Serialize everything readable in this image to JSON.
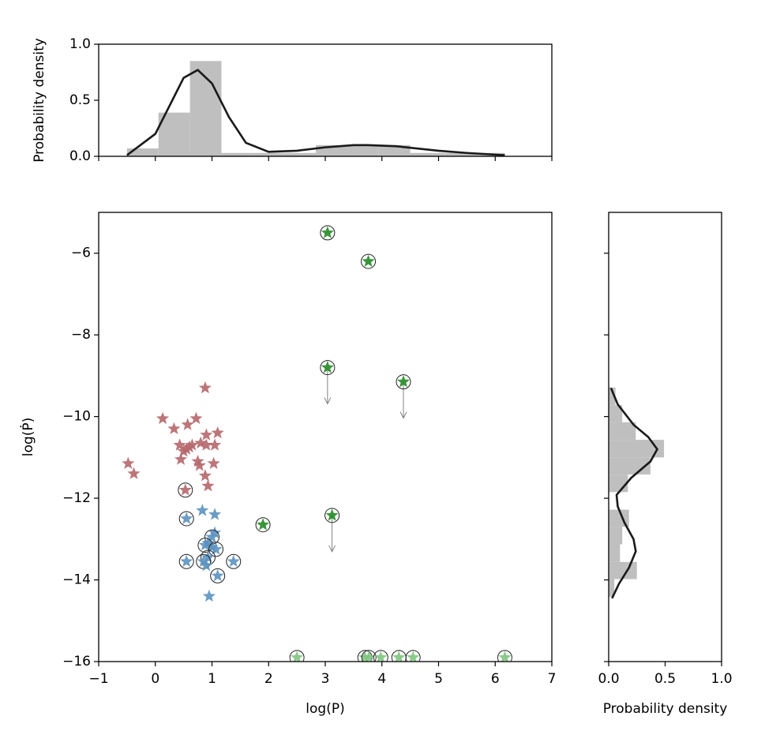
{
  "chart_data": [
    {
      "type": "histogram",
      "orientation": "vertical",
      "ylabel": "Probability density",
      "bins": [
        -0.5,
        0.056,
        0.611,
        1.167,
        1.722,
        2.278,
        2.833,
        3.389,
        3.944,
        4.5,
        5.056,
        5.611,
        6.167
      ],
      "values": [
        0.07,
        0.39,
        0.85,
        0.03,
        0.03,
        0.03,
        0.1,
        0.1,
        0.1,
        0.03,
        0.03,
        0.03
      ],
      "color": "#bfbfbf",
      "kde": {
        "color": "#1a1a1a",
        "x": [
          -0.5,
          0,
          0.3,
          0.5,
          0.75,
          1.0,
          1.3,
          1.6,
          2.0,
          2.5,
          3.0,
          3.5,
          3.75,
          4.25,
          5.0,
          5.5,
          6.17
        ],
        "values": [
          0.01,
          0.2,
          0.5,
          0.7,
          0.77,
          0.65,
          0.35,
          0.12,
          0.04,
          0.05,
          0.08,
          0.1,
          0.1,
          0.09,
          0.05,
          0.03,
          0.01
        ]
      },
      "xlim": [
        -1,
        7
      ],
      "xticks": [
        {
          "value": -1,
          "label": "−1"
        },
        0,
        1,
        2,
        3,
        4,
        5,
        6,
        7
      ],
      "show_xticklabels": false,
      "ylim": [
        0,
        1
      ],
      "yticks": [
        {
          "value": 0,
          "label": "0.0"
        },
        0.5,
        {
          "value": 1,
          "label": "1.0"
        }
      ]
    },
    {
      "type": "scatter",
      "xlabel": "log(P)",
      "ylabel": "log(Ṗ)",
      "xlim": [
        -1,
        7
      ],
      "xticks": [
        {
          "value": -1,
          "label": "−1"
        },
        0,
        1,
        2,
        3,
        4,
        5,
        6,
        7
      ],
      "ylim": [
        -16,
        -5
      ],
      "yticks": [
        {
          "value": -16,
          "label": "−16"
        },
        {
          "value": -14,
          "label": "−14"
        },
        {
          "value": -12,
          "label": "−12"
        },
        {
          "value": -10,
          "label": "−10"
        },
        {
          "value": -8,
          "label": "−8"
        },
        {
          "value": -6,
          "label": "−6"
        }
      ],
      "series": [
        {
          "color": "#b5676b",
          "x": [
            0.88,
            0.13,
            0.72,
            0.33,
            0.57,
            1.1,
            0.9,
            0.43,
            0.55,
            0.6,
            0.65,
            0.8,
            0.9,
            1.05,
            0.5,
            0.45,
            0.75,
            0.78,
            1.03,
            -0.48,
            -0.38,
            0.88,
            0.93,
            0.53
          ],
          "values": [
            -9.3,
            -10.05,
            -10.05,
            -10.3,
            -10.2,
            -10.4,
            -10.45,
            -10.7,
            -10.8,
            -10.75,
            -10.7,
            -10.65,
            -10.7,
            -10.7,
            -10.85,
            -11.05,
            -11.1,
            -11.2,
            -11.15,
            -11.15,
            -11.4,
            -11.45,
            -11.7,
            -11.8
          ],
          "circled": [
            false,
            false,
            false,
            false,
            false,
            false,
            false,
            false,
            false,
            false,
            false,
            false,
            false,
            false,
            false,
            false,
            false,
            false,
            false,
            false,
            false,
            false,
            false,
            true
          ],
          "upper_limit": [
            false,
            false,
            false,
            false,
            false,
            false,
            false,
            false,
            false,
            false,
            false,
            false,
            false,
            false,
            false,
            false,
            false,
            false,
            false,
            false,
            false,
            false,
            false,
            false
          ]
        },
        {
          "color": "#5b92c0",
          "x": [
            0.83,
            1.05,
            0.55,
            1.05,
            1.0,
            0.93,
            0.88,
            1.0,
            1.07,
            0.93,
            0.85,
            0.55,
            0.9,
            1.38,
            1.1,
            0.95
          ],
          "values": [
            -12.3,
            -12.4,
            -12.5,
            -12.85,
            -12.95,
            -13.1,
            -13.15,
            -13.2,
            -13.25,
            -13.45,
            -13.55,
            -13.55,
            -13.65,
            -13.55,
            -13.9,
            -14.4
          ],
          "circled": [
            false,
            false,
            true,
            false,
            true,
            false,
            true,
            false,
            true,
            true,
            true,
            true,
            false,
            true,
            true,
            false
          ],
          "upper_limit": [
            false,
            false,
            false,
            false,
            false,
            false,
            false,
            false,
            false,
            false,
            false,
            false,
            false,
            false,
            false,
            false
          ]
        },
        {
          "color": "#228b22",
          "x": [
            3.04,
            3.76,
            3.04,
            4.38,
            1.9,
            3.12
          ],
          "values": [
            -5.5,
            -6.2,
            -8.8,
            -9.15,
            -12.65,
            -12.42
          ],
          "circled": [
            true,
            true,
            true,
            true,
            true,
            true
          ],
          "upper_limit": [
            false,
            false,
            true,
            true,
            false,
            true
          ]
        },
        {
          "color": "#80c480",
          "x": [
            2.5,
            3.7,
            3.77,
            3.98,
            4.3,
            4.55,
            6.17
          ],
          "values": [
            -15.9,
            -15.9,
            -15.9,
            -15.9,
            -15.9,
            -15.9,
            -15.9
          ],
          "circled": [
            true,
            true,
            true,
            true,
            true,
            true,
            true
          ],
          "upper_limit": [
            false,
            false,
            false,
            false,
            false,
            false,
            false
          ]
        }
      ]
    },
    {
      "type": "histogram",
      "orientation": "horizontal",
      "xlabel": "Probability density",
      "bins": [
        -14.41,
        -13.98,
        -13.56,
        -13.13,
        -12.7,
        -12.28,
        -11.85,
        -11.42,
        -11.0,
        -10.57,
        -10.14,
        -9.72,
        -9.29
      ],
      "values": [
        0.05,
        0.25,
        0.1,
        0.12,
        0.18,
        0.0,
        0.17,
        0.37,
        0.49,
        0.24,
        0.12,
        0.06
      ],
      "color": "#bfbfbf",
      "kde": {
        "color": "#1a1a1a",
        "y": [
          -14.45,
          -14.1,
          -13.7,
          -13.3,
          -13.0,
          -12.6,
          -12.2,
          -11.92,
          -11.5,
          -11.1,
          -10.8,
          -10.5,
          -10.2,
          -9.7,
          -9.3
        ],
        "values": [
          0.03,
          0.09,
          0.18,
          0.24,
          0.22,
          0.14,
          0.08,
          0.07,
          0.2,
          0.37,
          0.43,
          0.35,
          0.22,
          0.08,
          0.02
        ]
      },
      "xlim": [
        0,
        1
      ],
      "xticks": [
        {
          "value": 0,
          "label": "0.0"
        },
        0.5,
        {
          "value": 1,
          "label": "1.0"
        }
      ],
      "ylim": [
        -16,
        -5
      ],
      "yticks": [
        {
          "value": -16,
          "label": "−16"
        },
        {
          "value": -14,
          "label": "−14"
        },
        {
          "value": -12,
          "label": "−12"
        },
        {
          "value": -10,
          "label": "−10"
        },
        {
          "value": -8,
          "label": "−8"
        },
        {
          "value": -6,
          "label": "−6"
        }
      ],
      "show_yticklabels": false
    }
  ]
}
